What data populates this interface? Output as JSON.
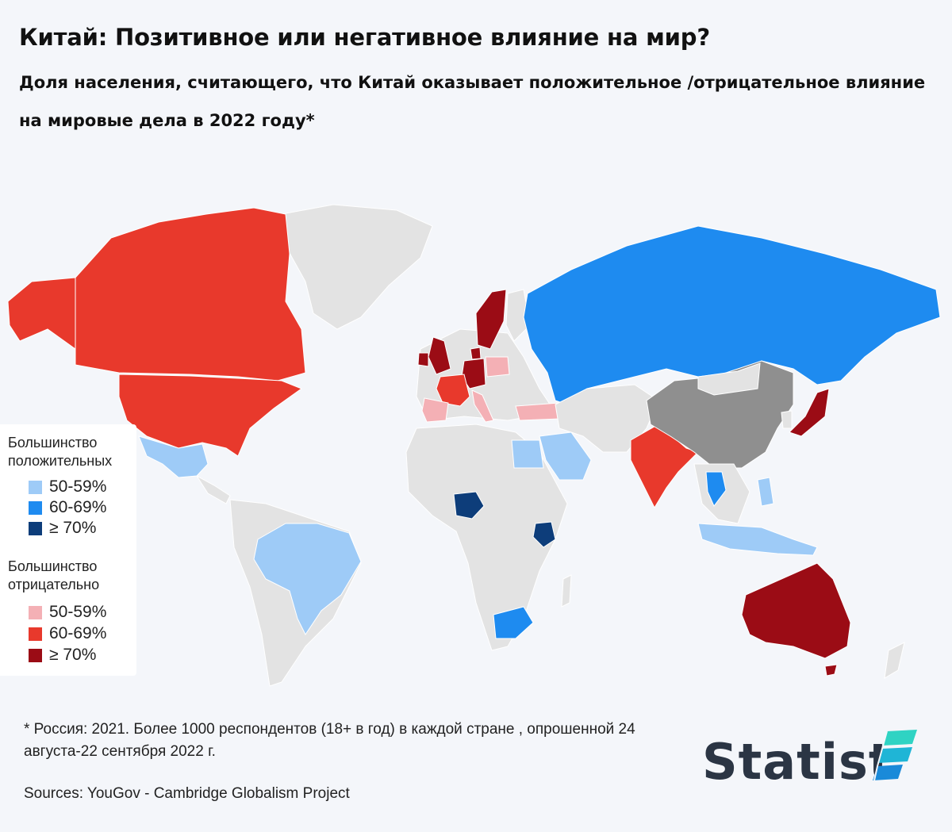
{
  "header": {
    "title": "Китай: Позитивное или негативное влияние на мир?",
    "subtitle": "Доля населения, считающего, что Китай оказывает положительное /отрицательное влияние на мировые дела в 2022 году*"
  },
  "legend": {
    "positive_heading": "Большинство положительных",
    "negative_heading": "Большинство отрицательно",
    "positive": [
      {
        "label": "50-59%",
        "color": "#9ecbf7"
      },
      {
        "label": "60-69%",
        "color": "#1e8bf0"
      },
      {
        "label": "≥ 70%",
        "color": "#0d3d7a"
      }
    ],
    "negative": [
      {
        "label": "50-59%",
        "color": "#f4b0b5"
      },
      {
        "label": "60-69%",
        "color": "#e8392c"
      },
      {
        "label": "≥ 70%",
        "color": "#9b0c15"
      }
    ]
  },
  "map_colors": {
    "no_data": "#e3e3e3",
    "china": "#8f8f8f",
    "border": "#ffffff"
  },
  "footer": {
    "footnote": "* Россия: 2021. Более 1000 респондентов (18+ в год) в каждой стране , опрошенной 24 августа-22 сентября 2022 г.",
    "sources": "Sources: YouGov - Cambridge Globalism Project",
    "brand": "Statist"
  }
}
